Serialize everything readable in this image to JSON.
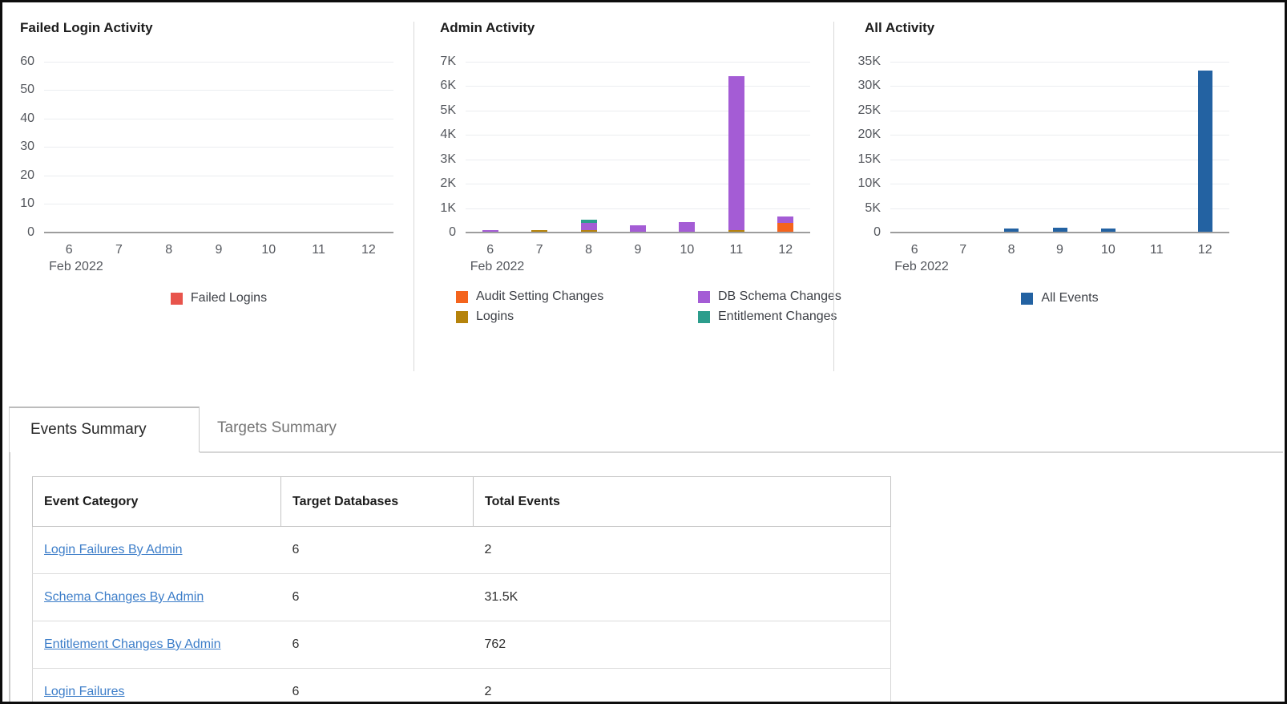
{
  "chart_data": [
    {
      "type": "bar",
      "title": "Failed Login Activity",
      "categories": [
        "6",
        "7",
        "8",
        "9",
        "10",
        "11",
        "12"
      ],
      "x_axis_label": "Feb 2022",
      "y_ticks": [
        "0",
        "10",
        "20",
        "30",
        "40",
        "50",
        "60"
      ],
      "ylim": [
        0,
        60
      ],
      "grid": true,
      "legend_position": "bottom-center",
      "legend": [
        {
          "label": "Failed Logins",
          "color": "#e8544c"
        }
      ],
      "series": [
        {
          "name": "Failed Logins",
          "color": "#e8544c",
          "values": [
            0,
            0,
            0,
            0,
            0,
            0,
            0
          ]
        }
      ]
    },
    {
      "type": "stacked-bar",
      "title": "Admin Activity",
      "categories": [
        "6",
        "7",
        "8",
        "9",
        "10",
        "11",
        "12"
      ],
      "x_axis_label": "Feb 2022",
      "y_ticks": [
        "0",
        "1K",
        "2K",
        "3K",
        "4K",
        "5K",
        "6K",
        "7K"
      ],
      "ylim": [
        0,
        7000
      ],
      "grid": true,
      "legend_position": "bottom-two-column",
      "legend": [
        {
          "label": "Audit Setting Changes",
          "color": "#f4641d"
        },
        {
          "label": "DB Schema Changes",
          "color": "#a45cd5"
        },
        {
          "label": "Logins",
          "color": "#b5830b"
        },
        {
          "label": "Entitlement Changes",
          "color": "#2c9d8c"
        }
      ],
      "series": [
        {
          "name": "Audit Setting Changes",
          "color": "#f4641d",
          "values": [
            0,
            0,
            0,
            0,
            0,
            0,
            350
          ]
        },
        {
          "name": "Logins",
          "color": "#b5830b",
          "values": [
            0,
            60,
            60,
            0,
            0,
            80,
            0
          ]
        },
        {
          "name": "DB Schema Changes",
          "color": "#a45cd5",
          "values": [
            50,
            0,
            300,
            250,
            400,
            6300,
            250
          ]
        },
        {
          "name": "Entitlement Changes",
          "color": "#2c9d8c",
          "values": [
            0,
            0,
            140,
            0,
            0,
            0,
            0
          ]
        }
      ]
    },
    {
      "type": "bar",
      "title": "All Activity",
      "categories": [
        "6",
        "7",
        "8",
        "9",
        "10",
        "11",
        "12"
      ],
      "x_axis_label": "Feb 2022",
      "y_ticks": [
        "0",
        "5K",
        "10K",
        "15K",
        "20K",
        "25K",
        "30K",
        "35K"
      ],
      "ylim": [
        0,
        35000
      ],
      "grid": true,
      "legend_position": "bottom-center",
      "legend": [
        {
          "label": "All Events",
          "color": "#2362a2"
        }
      ],
      "series": [
        {
          "name": "All Events",
          "color": "#2362a2",
          "values": [
            0,
            0,
            700,
            800,
            700,
            0,
            33000
          ]
        }
      ]
    }
  ],
  "tabs": [
    {
      "label": "Events Summary",
      "active": true
    },
    {
      "label": "Targets Summary",
      "active": false
    }
  ],
  "table": {
    "columns": [
      "Event Category",
      "Target Databases",
      "Total Events"
    ],
    "rows": [
      {
        "category": "Login Failures By Admin",
        "targets": "6",
        "total": "2"
      },
      {
        "category": "Schema Changes By Admin",
        "targets": "6",
        "total": "31.5K"
      },
      {
        "category": "Entitlement Changes By Admin",
        "targets": "6",
        "total": "762"
      },
      {
        "category": "Login Failures",
        "targets": "6",
        "total": "2"
      }
    ]
  }
}
